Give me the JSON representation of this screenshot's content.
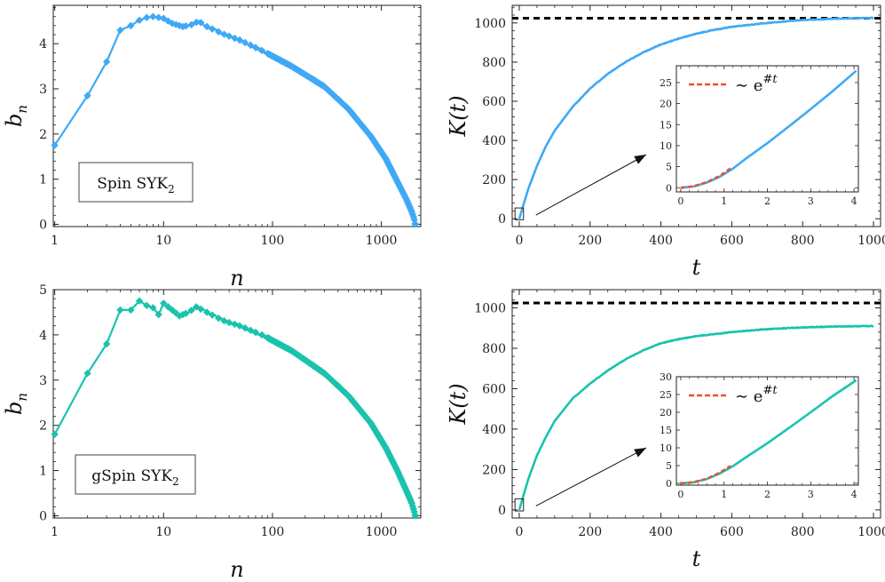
{
  "chart_data": [
    {
      "id": "p1",
      "type": "line",
      "xscale": "log",
      "xlabel": "n",
      "ylabel": "b_n",
      "color": "#3fa9f5",
      "annotation": "Spin SYK_2",
      "xticks": [
        1,
        10,
        100,
        1000
      ],
      "yticks": [
        0,
        1,
        2,
        3,
        4
      ],
      "xlim": [
        0.97,
        2300
      ],
      "ylim": [
        -0.05,
        4.85
      ],
      "anchors": [
        [
          1,
          1.75
        ],
        [
          2,
          2.85
        ],
        [
          3,
          3.6
        ],
        [
          4,
          4.3
        ],
        [
          5,
          4.4
        ],
        [
          6,
          4.52
        ],
        [
          7,
          4.58
        ],
        [
          8,
          4.6
        ],
        [
          9,
          4.58
        ],
        [
          10,
          4.56
        ],
        [
          12,
          4.45
        ],
        [
          15,
          4.38
        ],
        [
          18,
          4.42
        ],
        [
          21,
          4.5
        ],
        [
          25,
          4.38
        ],
        [
          35,
          4.22
        ],
        [
          50,
          4.08
        ],
        [
          80,
          3.85
        ],
        [
          150,
          3.5
        ],
        [
          300,
          3.05
        ],
        [
          500,
          2.55
        ],
        [
          800,
          1.95
        ],
        [
          1100,
          1.45
        ],
        [
          1400,
          0.95
        ],
        [
          1700,
          0.55
        ],
        [
          1900,
          0.28
        ],
        [
          2000,
          0.12
        ],
        [
          2048,
          0.0
        ]
      ]
    },
    {
      "id": "p2",
      "type": "line",
      "xlabel": "t",
      "ylabel": "K(t)",
      "color": "#3fa9f5",
      "saturation_value": 1024,
      "xticks": [
        0,
        200,
        400,
        600,
        800,
        1000
      ],
      "yticks": [
        0,
        200,
        400,
        600,
        800,
        1000
      ],
      "xlim": [
        -20,
        1020
      ],
      "ylim": [
        -40,
        1090
      ],
      "anchors": [
        [
          0,
          0
        ],
        [
          10,
          60
        ],
        [
          25,
          150
        ],
        [
          50,
          270
        ],
        [
          75,
          370
        ],
        [
          100,
          450
        ],
        [
          150,
          570
        ],
        [
          200,
          665
        ],
        [
          250,
          740
        ],
        [
          300,
          800
        ],
        [
          350,
          850
        ],
        [
          400,
          890
        ],
        [
          450,
          920
        ],
        [
          500,
          945
        ],
        [
          550,
          965
        ],
        [
          600,
          980
        ],
        [
          700,
          1000
        ],
        [
          800,
          1015
        ],
        [
          900,
          1022
        ],
        [
          1000,
          1026
        ]
      ],
      "inset": {
        "legend": "∼ e^{#t}",
        "xticks": [
          0,
          1,
          2,
          3,
          4
        ],
        "yticks": [
          0,
          5,
          10,
          15,
          20,
          25
        ],
        "xlim": [
          -0.1,
          4.1
        ],
        "ylim": [
          -1,
          29
        ],
        "line": [
          [
            0,
            0
          ],
          [
            0.3,
            0.3
          ],
          [
            0.6,
            1.2
          ],
          [
            0.9,
            2.6
          ],
          [
            1.2,
            4.5
          ],
          [
            1.5,
            6.9
          ],
          [
            2,
            10.6
          ],
          [
            2.5,
            14.6
          ],
          [
            3,
            18.7
          ],
          [
            3.5,
            22.9
          ],
          [
            4.05,
            27.8
          ]
        ],
        "fit": [
          [
            0,
            0
          ],
          [
            0.3,
            0.35
          ],
          [
            0.6,
            1.3
          ],
          [
            0.9,
            2.8
          ],
          [
            1.15,
            4.6
          ]
        ]
      }
    },
    {
      "id": "p3",
      "type": "line",
      "xscale": "log",
      "xlabel": "n",
      "ylabel": "b_n",
      "color": "#19c3ad",
      "annotation": "gSpin SYK_2",
      "xticks": [
        1,
        10,
        100,
        1000
      ],
      "yticks": [
        0,
        1,
        2,
        3,
        4,
        5
      ],
      "xlim": [
        0.97,
        2300
      ],
      "ylim": [
        -0.05,
        5.0
      ],
      "anchors": [
        [
          1,
          1.8
        ],
        [
          2,
          3.15
        ],
        [
          3,
          3.8
        ],
        [
          4,
          4.55
        ],
        [
          5,
          4.55
        ],
        [
          6,
          4.75
        ],
        [
          7,
          4.65
        ],
        [
          8,
          4.6
        ],
        [
          9,
          4.45
        ],
        [
          10,
          4.7
        ],
        [
          12,
          4.55
        ],
        [
          14,
          4.42
        ],
        [
          17,
          4.5
        ],
        [
          20,
          4.62
        ],
        [
          25,
          4.5
        ],
        [
          35,
          4.32
        ],
        [
          50,
          4.2
        ],
        [
          80,
          4.0
        ],
        [
          150,
          3.65
        ],
        [
          300,
          3.15
        ],
        [
          500,
          2.65
        ],
        [
          800,
          2.05
        ],
        [
          1100,
          1.5
        ],
        [
          1400,
          1.0
        ],
        [
          1700,
          0.55
        ],
        [
          1900,
          0.28
        ],
        [
          2000,
          0.1
        ],
        [
          2048,
          0.0
        ]
      ]
    },
    {
      "id": "p4",
      "type": "line",
      "xlabel": "t",
      "ylabel": "K(t)",
      "color": "#19c3ad",
      "saturation_value": 1024,
      "xticks": [
        0,
        200,
        400,
        600,
        800,
        1000
      ],
      "yticks": [
        0,
        200,
        400,
        600,
        800,
        1000
      ],
      "xlim": [
        -20,
        1020
      ],
      "ylim": [
        -40,
        1090
      ],
      "anchors": [
        [
          0,
          0
        ],
        [
          10,
          60
        ],
        [
          25,
          150
        ],
        [
          50,
          270
        ],
        [
          75,
          360
        ],
        [
          100,
          440
        ],
        [
          150,
          550
        ],
        [
          200,
          625
        ],
        [
          250,
          690
        ],
        [
          300,
          745
        ],
        [
          350,
          790
        ],
        [
          400,
          825
        ],
        [
          450,
          845
        ],
        [
          500,
          860
        ],
        [
          600,
          880
        ],
        [
          700,
          895
        ],
        [
          800,
          903
        ],
        [
          900,
          908
        ],
        [
          1000,
          910
        ]
      ],
      "inset": {
        "legend": "∼ e^{#t}",
        "xticks": [
          0,
          1,
          2,
          3,
          4
        ],
        "yticks": [
          0,
          5,
          10,
          15,
          20,
          25,
          30
        ],
        "xlim": [
          -0.1,
          4.1
        ],
        "ylim": [
          -0.5,
          30
        ],
        "line": [
          [
            0,
            0
          ],
          [
            0.3,
            0.3
          ],
          [
            0.6,
            1.2
          ],
          [
            0.9,
            2.8
          ],
          [
            1.2,
            4.8
          ],
          [
            1.5,
            7.3
          ],
          [
            2,
            11.3
          ],
          [
            2.5,
            15.6
          ],
          [
            3,
            20.0
          ],
          [
            3.5,
            24.5
          ],
          [
            4.05,
            29.0
          ]
        ],
        "fit": [
          [
            0,
            0
          ],
          [
            0.3,
            0.35
          ],
          [
            0.6,
            1.3
          ],
          [
            0.9,
            3.0
          ],
          [
            1.15,
            4.9
          ]
        ]
      }
    }
  ]
}
